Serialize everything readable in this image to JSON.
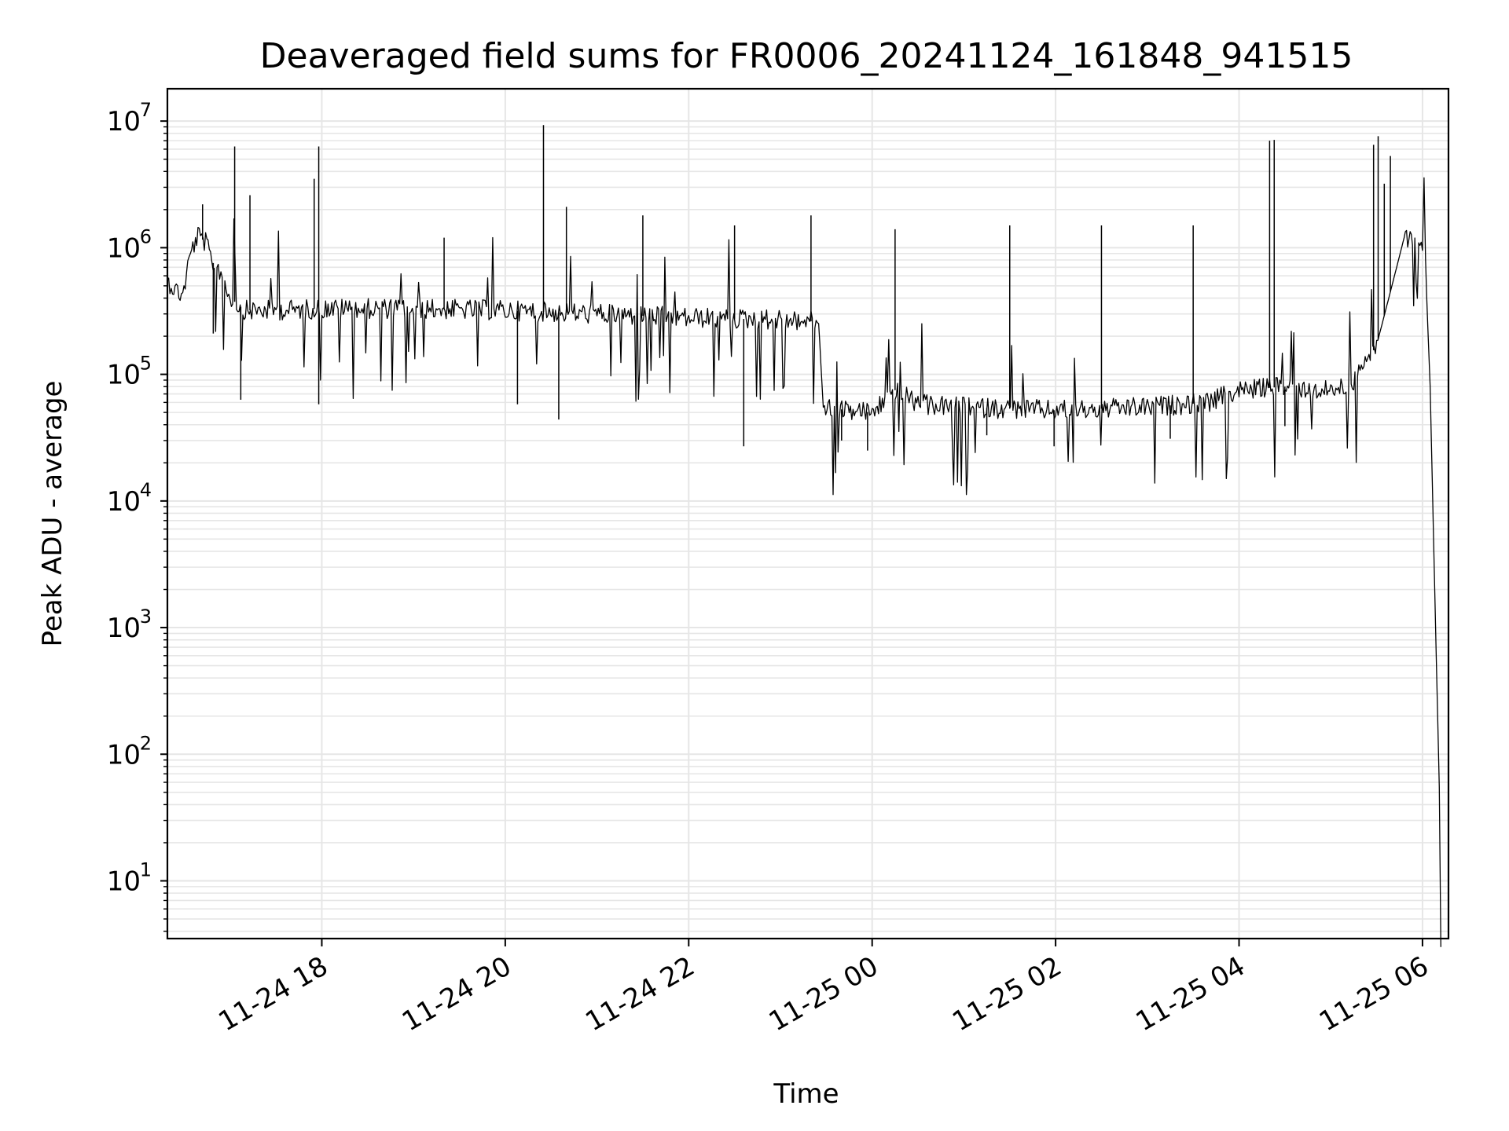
{
  "chart_data": {
    "type": "line",
    "title": "Deaveraged field sums for FR0006_20241124_161848_941515",
    "xlabel": "Time",
    "ylabel": "Peak ADU - average",
    "xscale": "time",
    "yscale": "log",
    "xlim": [
      "2024-11-24 16:19",
      "2024-11-25 06:17"
    ],
    "ylim": [
      3.5,
      18000000
    ],
    "grid": true,
    "legend": "none",
    "line_color": "#000000",
    "grid_color": "#e6e6e6",
    "x_ticks": [
      {
        "t": "2024-11-24 18:00",
        "label": "11-24 18"
      },
      {
        "t": "2024-11-24 20:00",
        "label": "11-24 20"
      },
      {
        "t": "2024-11-24 22:00",
        "label": "11-24 22"
      },
      {
        "t": "2024-11-25 00:00",
        "label": "11-25 00"
      },
      {
        "t": "2024-11-25 02:00",
        "label": "11-25 02"
      },
      {
        "t": "2024-11-25 04:00",
        "label": "11-25 04"
      },
      {
        "t": "2024-11-25 06:00",
        "label": "11-25 06"
      }
    ],
    "y_ticks": [
      {
        "value": 10,
        "base": "10",
        "exp": "1"
      },
      {
        "value": 100,
        "base": "10",
        "exp": "2"
      },
      {
        "value": 1000,
        "base": "10",
        "exp": "3"
      },
      {
        "value": 10000,
        "base": "10",
        "exp": "4"
      },
      {
        "value": 100000,
        "base": "10",
        "exp": "5"
      },
      {
        "value": 1000000,
        "base": "10",
        "exp": "6"
      },
      {
        "value": 10000000,
        "base": "10",
        "exp": "7"
      }
    ],
    "series": [
      {
        "values": [
          [
            "2024-11-24 16:19",
            550000
          ],
          [
            "2024-11-24 16:24",
            470000
          ],
          [
            "2024-11-24 16:29",
            420000
          ],
          [
            "2024-11-24 16:34",
            900000
          ],
          [
            "2024-11-24 16:39",
            1250000
          ],
          [
            "2024-11-24 16:44",
            1100000
          ],
          [
            "2024-11-24 16:48",
            780000
          ],
          [
            "2024-11-24 16:54",
            650000
          ],
          [
            "2024-11-24 17:00",
            400000
          ],
          [
            "2024-11-24 17:10",
            320000
          ],
          [
            "2024-11-24 17:30",
            320000
          ],
          [
            "2024-11-24 18:00",
            330000
          ],
          [
            "2024-11-24 19:00",
            330000
          ],
          [
            "2024-11-24 20:00",
            320000
          ],
          [
            "2024-11-24 21:00",
            300000
          ],
          [
            "2024-11-24 22:00",
            280000
          ],
          [
            "2024-11-24 23:00",
            270000
          ],
          [
            "2024-11-24 23:25",
            260000
          ],
          [
            "2024-11-24 23:28",
            55000
          ],
          [
            "2024-11-24 23:45",
            52000
          ],
          [
            "2024-11-25 00:00",
            50000
          ],
          [
            "2024-11-25 00:15",
            75000
          ],
          [
            "2024-11-25 00:30",
            58000
          ],
          [
            "2024-11-25 01:00",
            55000
          ],
          [
            "2024-11-25 02:00",
            52000
          ],
          [
            "2024-11-25 03:00",
            55000
          ],
          [
            "2024-11-25 03:40",
            60000
          ],
          [
            "2024-11-25 04:00",
            75000
          ],
          [
            "2024-11-25 04:30",
            80000
          ],
          [
            "2024-11-25 05:00",
            75000
          ],
          [
            "2024-11-25 05:15",
            85000
          ],
          [
            "2024-11-25 05:30",
            170000
          ],
          [
            "2024-11-25 05:40",
            500000
          ],
          [
            "2024-11-25 05:48",
            1200000
          ],
          [
            "2024-11-25 05:55",
            1250000
          ],
          [
            "2024-11-25 06:00",
            1100000
          ],
          [
            "2024-11-25 06:02",
            700000
          ],
          [
            "2024-11-25 06:05",
            80000
          ],
          [
            "2024-11-25 06:08",
            2000
          ],
          [
            "2024-11-25 06:10",
            180
          ],
          [
            "2024-11-25 06:11",
            55
          ],
          [
            "2024-11-25 06:12",
            3
          ]
        ],
        "spikes": [
          [
            "2024-11-24 16:42",
            2200000
          ],
          [
            "2024-11-24 17:03",
            6300000
          ],
          [
            "2024-11-24 17:13",
            2600000
          ],
          [
            "2024-11-24 17:55",
            3500000
          ],
          [
            "2024-11-24 17:58",
            6300000
          ],
          [
            "2024-11-24 19:20",
            1200000
          ],
          [
            "2024-11-24 20:25",
            9300000
          ],
          [
            "2024-11-24 20:40",
            2100000
          ],
          [
            "2024-11-24 21:30",
            1800000
          ],
          [
            "2024-11-24 22:30",
            1500000
          ],
          [
            "2024-11-24 23:20",
            1800000
          ],
          [
            "2024-11-25 00:15",
            1400000
          ],
          [
            "2024-11-25 01:30",
            1500000
          ],
          [
            "2024-11-25 02:30",
            1500000
          ],
          [
            "2024-11-25 03:30",
            1500000
          ],
          [
            "2024-11-25 04:20",
            7000000
          ],
          [
            "2024-11-25 04:23",
            7100000
          ],
          [
            "2024-11-25 05:28",
            6500000
          ],
          [
            "2024-11-25 05:31",
            7600000
          ],
          [
            "2024-11-25 05:35",
            3200000
          ],
          [
            "2024-11-25 05:39",
            5300000
          ]
        ],
        "dips": [
          [
            "2024-11-24 16:49",
            210000
          ],
          [
            "2024-11-24 17:07",
            63000
          ],
          [
            "2024-11-24 17:58",
            58000
          ],
          [
            "2024-11-24 20:08",
            58000
          ],
          [
            "2024-11-24 20:35",
            44000
          ],
          [
            "2024-11-24 22:36",
            27000
          ],
          [
            "2024-11-24 23:40",
            30000
          ],
          [
            "2024-11-24 23:57",
            25000
          ],
          [
            "2024-11-25 01:15",
            33000
          ],
          [
            "2024-11-25 01:59",
            27000
          ],
          [
            "2024-11-25 03:15",
            31000
          ],
          [
            "2024-11-25 04:30",
            39000
          ]
        ]
      }
    ]
  }
}
